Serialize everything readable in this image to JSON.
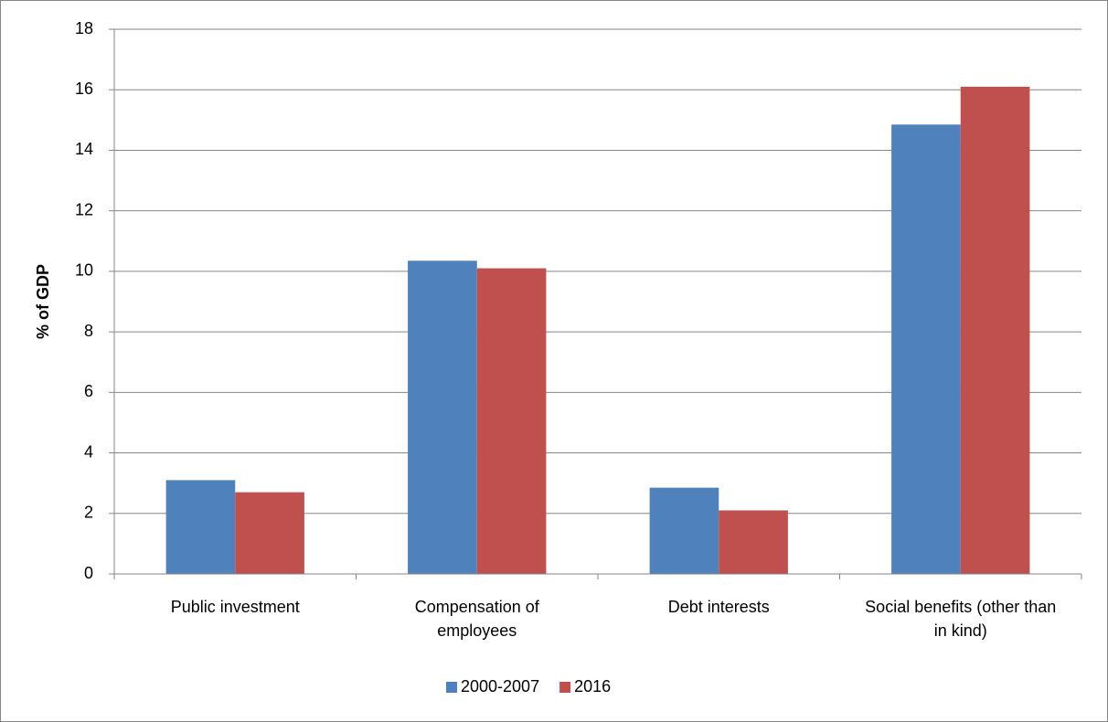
{
  "chart_data": {
    "type": "bar",
    "y_label": "% of GDP",
    "categories": [
      "Public investment",
      "Compensation of employees",
      "Debt interests",
      "Social benefits (other than in kind)"
    ],
    "series": [
      {
        "name": "2000-2007",
        "color": "#4f81bd",
        "values": [
          3.1,
          10.35,
          2.85,
          14.85
        ]
      },
      {
        "name": "2016",
        "color": "#c0504d",
        "values": [
          2.7,
          10.1,
          2.1,
          16.1
        ]
      }
    ],
    "ylim": [
      0,
      18
    ],
    "yticks": [
      0,
      2,
      4,
      6,
      8,
      10,
      12,
      14,
      16,
      18
    ],
    "grid": true,
    "legend": "bottom"
  }
}
